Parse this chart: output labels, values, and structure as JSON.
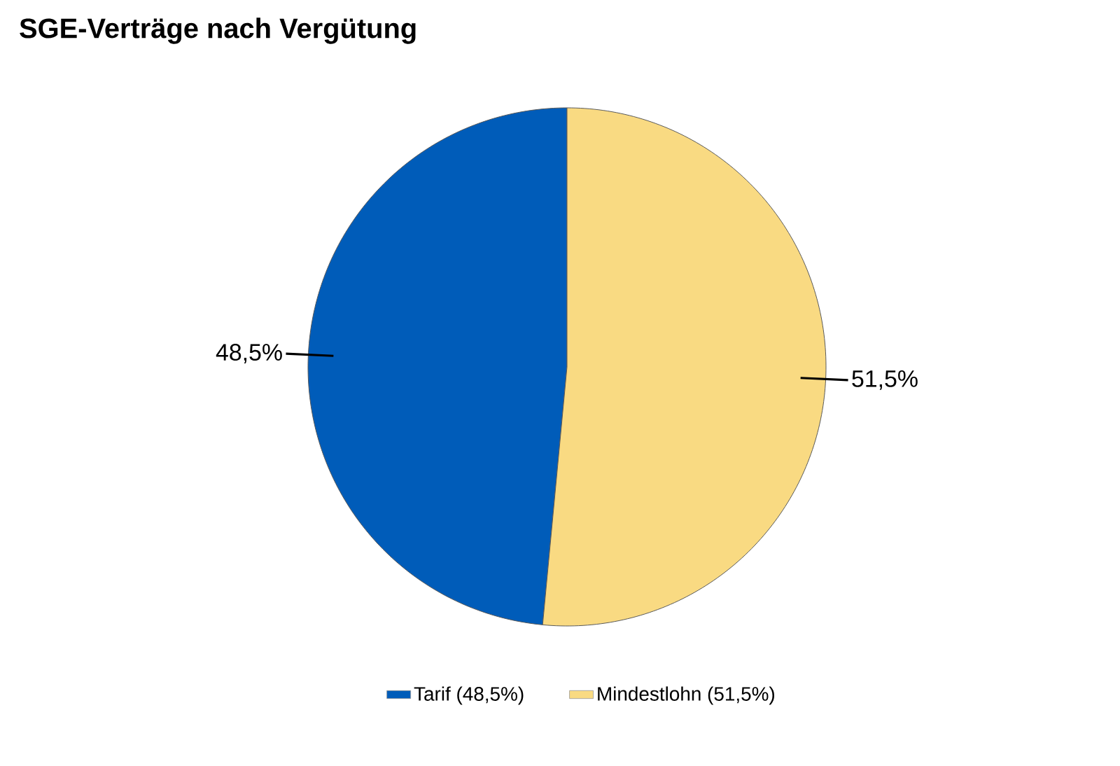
{
  "chart_data": {
    "type": "pie",
    "title": "SGE-Verträge nach Vergütung",
    "categories": [
      "Tarif (48,5%)",
      "Mindestlohn (51,5%)"
    ],
    "values": [
      48.5,
      51.5
    ],
    "colors": [
      "#005cb9",
      "#f9da82"
    ],
    "value_labels": [
      "48,5%",
      "51,5%"
    ],
    "legend": "bottom"
  }
}
